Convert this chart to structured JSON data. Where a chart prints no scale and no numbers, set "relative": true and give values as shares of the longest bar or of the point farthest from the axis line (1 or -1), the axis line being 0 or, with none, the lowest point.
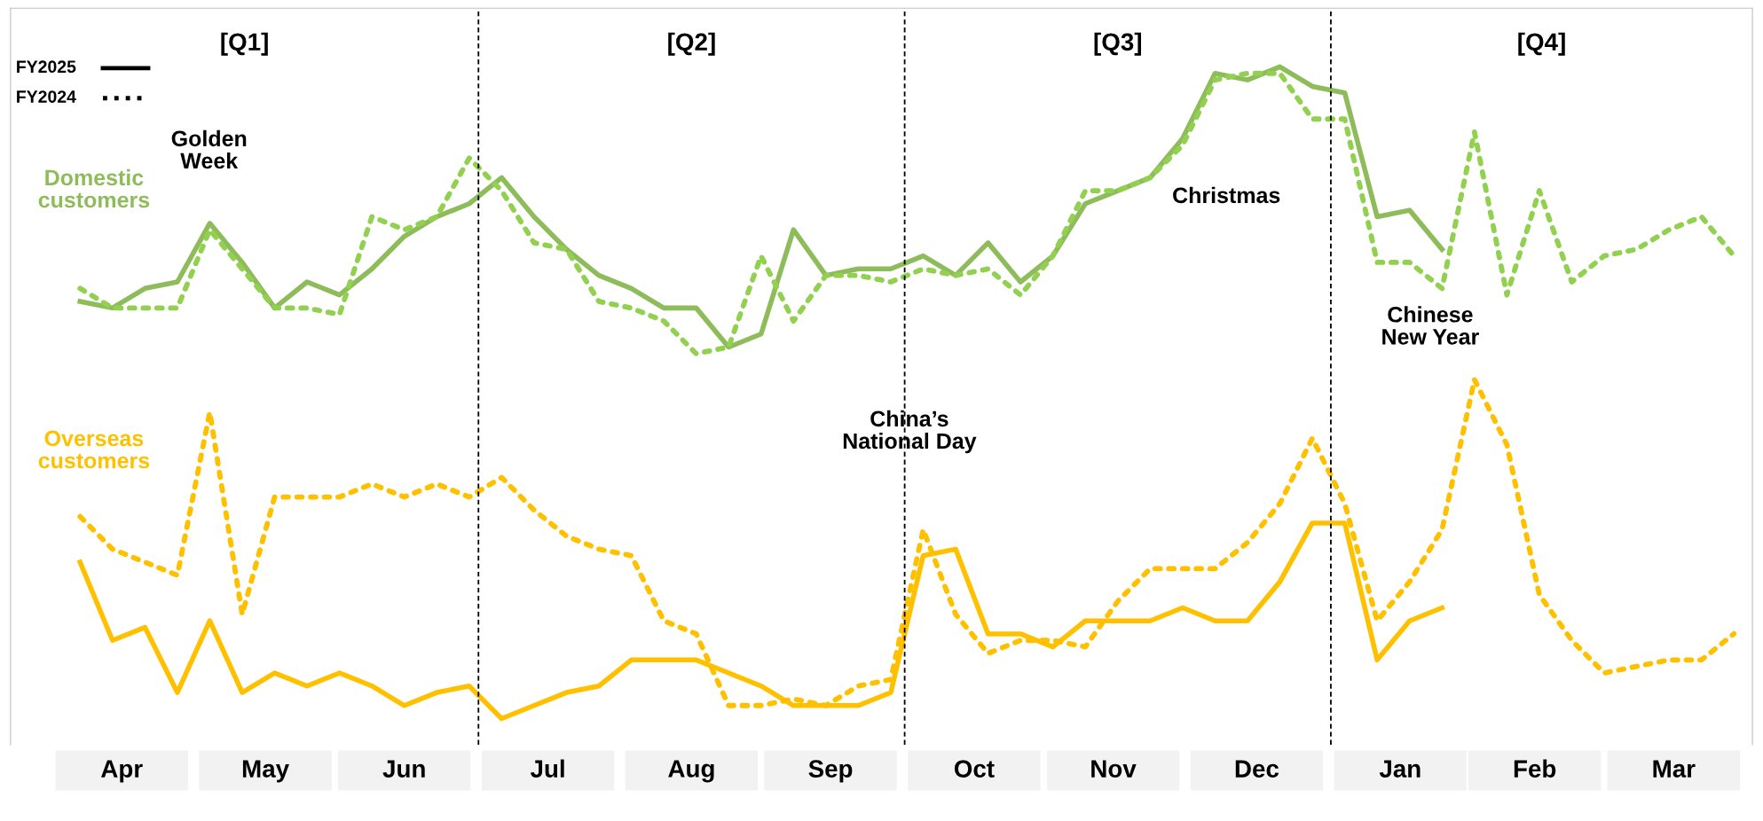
{
  "chart_data": {
    "type": "line",
    "relative": true,
    "grid": false,
    "marker": "none",
    "x": [
      "2025-04-06",
      "2025-04-13",
      "2025-04-20",
      "2025-04-27",
      "2025-05-04",
      "2025-05-11",
      "2025-05-18",
      "2025-05-25",
      "2025-06-01",
      "2025-06-08",
      "2025-06-15",
      "2025-06-22",
      "2025-06-29",
      "2025-07-06",
      "2025-07-13",
      "2025-07-20",
      "2025-07-27",
      "2025-08-03",
      "2025-08-10",
      "2025-08-17",
      "2025-08-24",
      "2025-08-31",
      "2025-09-07",
      "2025-09-14",
      "2025-09-21",
      "2025-09-28",
      "2025-10-05",
      "2025-10-12",
      "2025-10-19",
      "2025-10-26",
      "2025-11-02",
      "2025-11-09",
      "2025-11-16",
      "2025-11-23",
      "2025-11-30",
      "2025-12-07",
      "2025-12-14",
      "2025-12-21",
      "2025-12-28",
      "2026-01-04",
      "2026-01-11",
      "2026-01-18",
      "2026-01-25",
      "2026-02-01",
      "2026-02-08",
      "2026-02-15",
      "2026-02-22",
      "2026-03-01",
      "2026-03-08",
      "2026-03-15",
      "2026-03-22",
      "2026-03-29"
    ],
    "xlim": [
      "2025-03-22",
      "2026-04-02"
    ],
    "xticks": [
      {
        "value": "2025-04-15",
        "label": "Apr"
      },
      {
        "value": "2025-05-16",
        "label": "May"
      },
      {
        "value": "2025-06-15",
        "label": "Jun"
      },
      {
        "value": "2025-07-16",
        "label": "Jul"
      },
      {
        "value": "2025-08-16",
        "label": "Aug"
      },
      {
        "value": "2025-09-15",
        "label": "Sep"
      },
      {
        "value": "2025-10-16",
        "label": "Oct"
      },
      {
        "value": "2025-11-15",
        "label": "Nov"
      },
      {
        "value": "2025-12-16",
        "label": "Dec"
      },
      {
        "value": "2026-01-16",
        "label": "Jan"
      },
      {
        "value": "2026-02-14",
        "label": "Feb"
      },
      {
        "value": "2026-03-16",
        "label": "Mar"
      }
    ],
    "series": [
      {
        "name": "Domestic customers",
        "color": "#8fbc5a",
        "line_style": "solid",
        "values": [
          0.64,
          0.63,
          0.66,
          0.67,
          0.76,
          0.7,
          0.63,
          0.67,
          0.65,
          0.69,
          0.74,
          0.77,
          0.79,
          0.83,
          0.77,
          0.72,
          0.68,
          0.66,
          0.63,
          0.63,
          0.57,
          0.59,
          0.75,
          0.68,
          0.69,
          0.69,
          0.71,
          0.68,
          0.73,
          0.67,
          0.71,
          0.79,
          0.81,
          0.83,
          0.89,
          0.99,
          0.98,
          1.0,
          0.97,
          0.96,
          0.77,
          0.78,
          0.72,
          null,
          null,
          null,
          null,
          null,
          null,
          null,
          null,
          null
        ]
      },
      {
        "color": "#92d050",
        "line_style": "dotted",
        "values": [
          0.66,
          0.63,
          0.63,
          0.63,
          0.75,
          0.69,
          0.63,
          0.63,
          0.62,
          0.77,
          0.75,
          0.77,
          0.86,
          0.81,
          0.73,
          0.72,
          0.64,
          0.63,
          0.61,
          0.56,
          0.57,
          0.71,
          0.61,
          0.68,
          0.68,
          0.67,
          0.69,
          0.68,
          0.69,
          0.65,
          0.71,
          0.81,
          0.81,
          0.83,
          0.88,
          0.98,
          0.99,
          0.99,
          0.92,
          0.92,
          0.7,
          0.7,
          0.66,
          0.9,
          0.65,
          0.81,
          0.67,
          0.71,
          0.72,
          0.75,
          0.77,
          0.71
        ]
      },
      {
        "name": "Overseas customers",
        "color": "#ffc000",
        "line_style": "solid",
        "values": [
          0.24,
          0.12,
          0.14,
          0.04,
          0.15,
          0.04,
          0.07,
          0.05,
          0.07,
          0.05,
          0.02,
          0.04,
          0.05,
          0,
          0.02,
          0.04,
          0.05,
          0.09,
          0.09,
          0.09,
          0.07,
          0.05,
          0.02,
          0.02,
          0.02,
          0.04,
          0.25,
          0.26,
          0.13,
          0.13,
          0.11,
          0.15,
          0.15,
          0.15,
          0.17,
          0.15,
          0.15,
          0.21,
          0.3,
          0.3,
          0.09,
          0.15,
          0.17,
          null,
          null,
          null,
          null,
          null,
          null,
          null,
          null,
          null
        ]
      },
      {
        "color": "#ffc000",
        "line_style": "dotted",
        "values": [
          0.31,
          0.26,
          0.24,
          0.22,
          0.47,
          0.16,
          0.34,
          0.34,
          0.34,
          0.36,
          0.34,
          0.36,
          0.34,
          0.37,
          0.32,
          0.28,
          0.26,
          0.25,
          0.15,
          0.13,
          0.02,
          0.02,
          0.03,
          0.02,
          0.05,
          0.06,
          0.29,
          0.16,
          0.1,
          0.12,
          0.12,
          0.11,
          0.18,
          0.23,
          0.23,
          0.23,
          0.27,
          0.33,
          0.43,
          0.33,
          0.15,
          0.21,
          0.29,
          0.52,
          0.42,
          0.19,
          0.12,
          0.07,
          0.08,
          0.09,
          0.09,
          0.13
        ]
      }
    ],
    "annotations": [
      "FY2025",
      "FY2024",
      "[Q1]",
      "[Q2]",
      "[Q3]",
      "[Q4]",
      "Golden\nWeek",
      "China’s\nNational Day",
      "Christmas",
      "Chinese\nNew Year"
    ],
    "ref_lines": [
      {
        "axis": "x",
        "value": "2025-07-01",
        "color": "#000000",
        "line_style": "dashed"
      },
      {
        "axis": "x",
        "value": "2025-10-01",
        "color": "#000000",
        "line_style": "dashed"
      },
      {
        "axis": "x",
        "value": "2026-01-01",
        "color": "#000000",
        "line_style": "dashed"
      }
    ]
  }
}
